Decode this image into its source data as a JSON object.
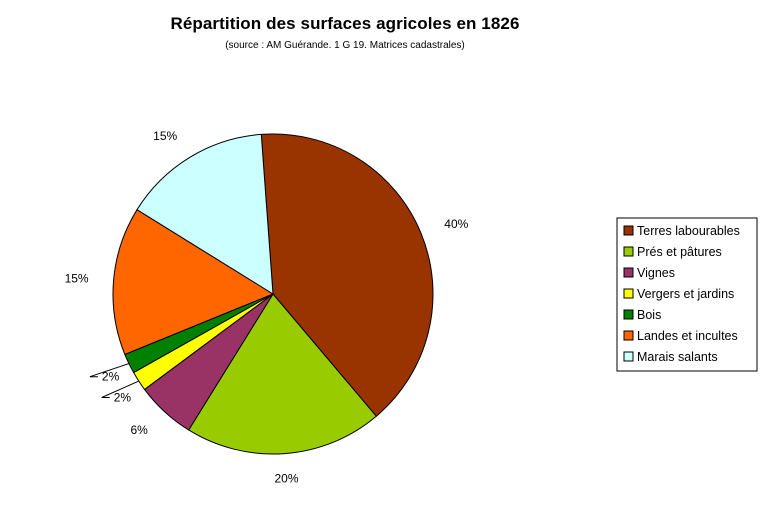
{
  "chart_data": {
    "type": "pie",
    "title": "Répartition des surfaces agricoles en 1826",
    "subtitle": "(source :  AM Guérande. 1 G 19. Matrices cadastrales)",
    "legend_position": "right",
    "series": [
      {
        "name": "Terres labourables",
        "value": 40,
        "label": "40%",
        "color": "#993300"
      },
      {
        "name": "Prés et pâtures",
        "value": 20,
        "label": "20%",
        "color": "#99CC00"
      },
      {
        "name": "Vignes",
        "value": 6,
        "label": "6%",
        "color": "#993366"
      },
      {
        "name": "Vergers et jardins",
        "value": 2,
        "label": "2%",
        "color": "#FFFF00"
      },
      {
        "name": "Bois",
        "value": 2,
        "label": "2%",
        "color": "#008000"
      },
      {
        "name": "Landes et incultes",
        "value": 15,
        "label": "15%",
        "color": "#FF6600"
      },
      {
        "name": "Marais salants",
        "value": 15,
        "label": "15%",
        "color": "#CCFFFF"
      }
    ]
  }
}
